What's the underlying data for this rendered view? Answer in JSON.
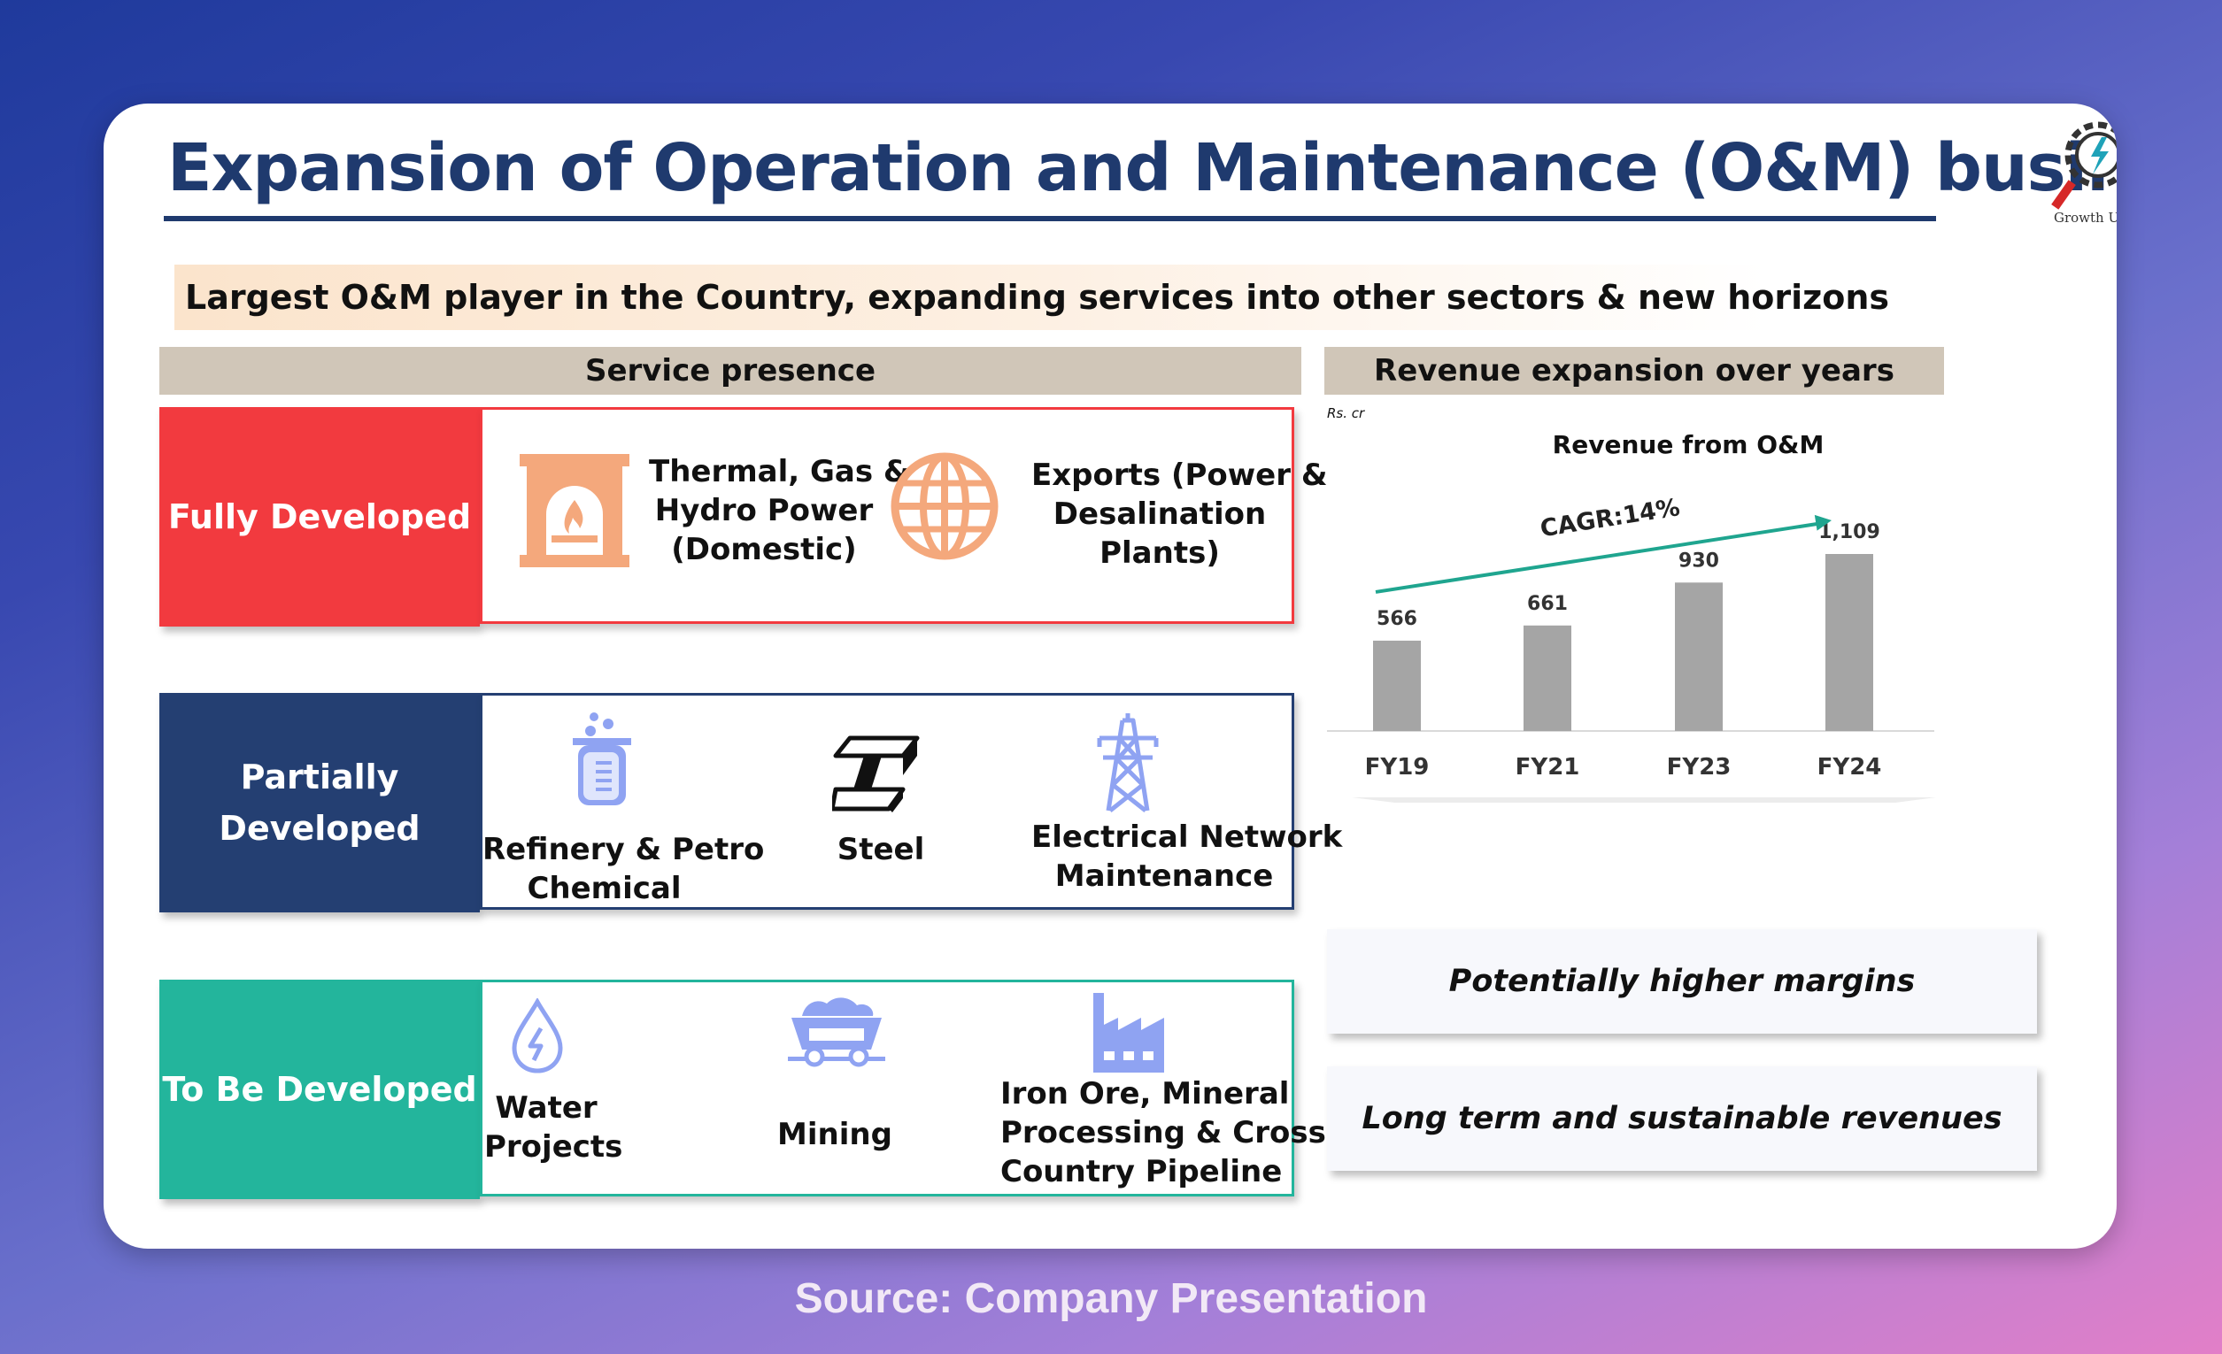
{
  "title": "Expansion of Operation and Maintenance (O&M) business",
  "logo_text": "Growth Unl",
  "tagline": "Largest O&M player in the Country, expanding services into other sectors & new horizons",
  "service_header": "Service presence",
  "revenue_header": "Revenue expansion over years",
  "rows": [
    {
      "label": "Fully Developed",
      "color": "#f23a3f",
      "items": [
        {
          "icon": "fireplace-icon",
          "text": [
            "Thermal, Gas &",
            "Hydro Power",
            "(Domestic)"
          ]
        },
        {
          "icon": "globe-icon",
          "text": [
            "Exports (Power &",
            "Desalination",
            "Plants)"
          ]
        }
      ]
    },
    {
      "label_lines": [
        "Partially",
        "Developed"
      ],
      "color": "#243f72",
      "items": [
        {
          "icon": "beaker-icon",
          "text": [
            "Refinery & Petro",
            "Chemical"
          ]
        },
        {
          "icon": "steel-beam-icon",
          "text": [
            "Steel"
          ]
        },
        {
          "icon": "transmission-tower-icon",
          "text": [
            "Electrical Network",
            "Maintenance"
          ]
        }
      ]
    },
    {
      "label": "To Be Developed",
      "color": "#23b59c",
      "items": [
        {
          "icon": "water-drop-icon",
          "text": [
            "Water",
            "Projects"
          ]
        },
        {
          "icon": "mining-cart-icon",
          "text": [
            "Mining"
          ]
        },
        {
          "icon": "factory-icon",
          "text": [
            "Iron Ore, Mineral",
            "Processing & Cross",
            "Country Pipeline"
          ]
        }
      ]
    }
  ],
  "chart_data": {
    "type": "bar",
    "title": "Revenue from O&M",
    "unit_label": "Rs. cr",
    "categories": [
      "FY19",
      "FY21",
      "FY23",
      "FY24"
    ],
    "values": [
      566,
      661,
      930,
      1109
    ],
    "value_labels": [
      "566",
      "661",
      "930",
      "1,109"
    ],
    "annotation": "CAGR:14%",
    "bar_color": "#a5a5a5",
    "arrow_color": "#1fa58f",
    "grid": false
  },
  "benefits": [
    "Potentially higher margins",
    "Long term and sustainable revenues"
  ],
  "source": "Source: Company Presentation"
}
